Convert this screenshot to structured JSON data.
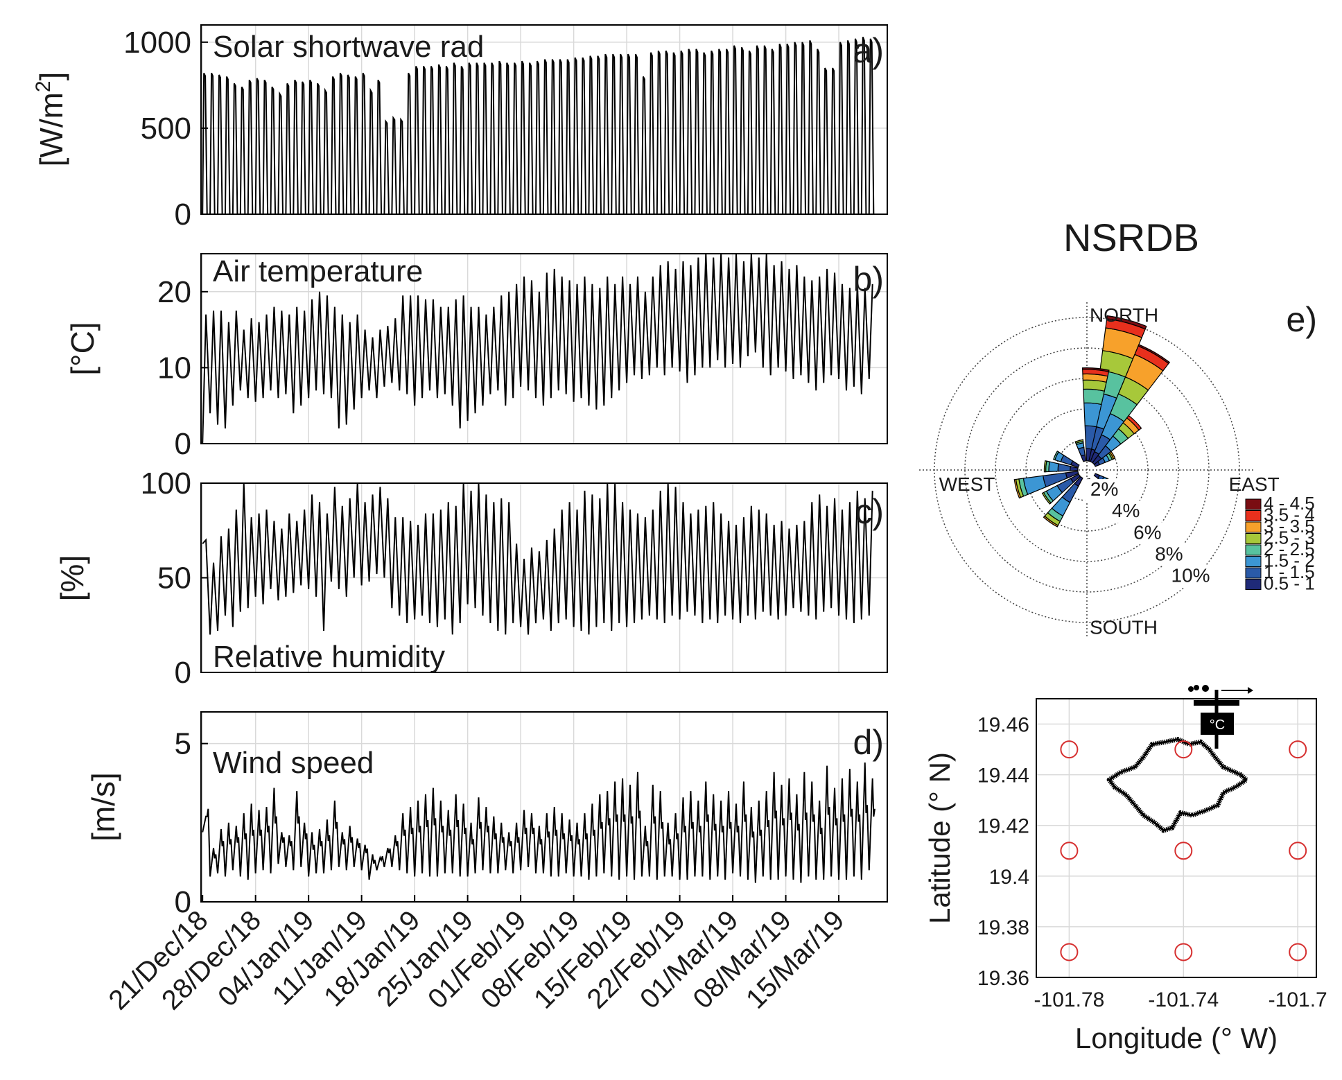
{
  "chart_data": [
    {
      "type": "line",
      "panel": "a)",
      "label": "Solar shortwave rad",
      "ylabel_main": "[W/m",
      "ylabel_sup": "2",
      "ylabel_end": "]",
      "ylim": [
        0,
        1100
      ],
      "yticks": [
        "0",
        "500",
        "1000"
      ],
      "ytick_values": [
        0,
        500,
        1000
      ],
      "series": [
        {
          "name": "shortwave",
          "daily_peak": [
            820,
            820,
            810,
            800,
            760,
            740,
            780,
            790,
            780,
            740,
            700,
            760,
            780,
            770,
            780,
            760,
            720,
            800,
            820,
            810,
            800,
            820,
            720,
            780,
            540,
            560,
            550,
            820,
            860,
            860,
            860,
            870,
            860,
            880,
            860,
            880,
            880,
            880,
            880,
            890,
            880,
            880,
            890,
            880,
            890,
            900,
            900,
            900,
            900,
            910,
            910,
            920,
            920,
            930,
            930,
            930,
            930,
            930,
            800,
            940,
            950,
            950,
            940,
            950,
            960,
            960,
            940,
            950,
            960,
            960,
            980,
            970,
            950,
            980,
            980,
            960,
            990,
            990,
            1000,
            1000,
            1010,
            960,
            850,
            850,
            1000,
            1010,
            1020,
            1030,
            1020
          ]
        }
      ]
    },
    {
      "type": "line",
      "panel": "b)",
      "label": "Air temperature",
      "ylabel": "[°C]",
      "ylim": [
        0,
        25
      ],
      "yticks": [
        "0",
        "10",
        "20"
      ],
      "ytick_values": [
        0,
        10,
        20
      ],
      "series": [
        {
          "name": "air_temp",
          "daily_max": [
            17.0,
            17.5,
            17.5,
            16.0,
            17.5,
            15.0,
            16.5,
            16.0,
            17.0,
            18.0,
            17.5,
            17.0,
            18.0,
            17.5,
            19.0,
            20.0,
            19.5,
            18.0,
            17.0,
            16.0,
            17.0,
            15.0,
            14.0,
            15.0,
            15.5,
            16.5,
            19.5,
            19.5,
            19.5,
            19.0,
            19.0,
            18.0,
            18.0,
            19.0,
            19.5,
            18.0,
            18.0,
            17.0,
            18.0,
            19.5,
            20.0,
            21.0,
            22.0,
            21.5,
            20.0,
            22.5,
            23.0,
            22.0,
            21.5,
            21.0,
            22.0,
            21.0,
            20.5,
            22.0,
            21.0,
            22.0,
            21.0,
            22.0,
            20.0,
            22.0,
            23.5,
            24.0,
            23.0,
            24.0,
            23.5,
            24.5,
            25.0,
            24.5,
            25.0,
            24.5,
            25.0,
            24.0,
            25.0,
            24.5,
            25.0,
            23.5,
            24.0,
            23.0,
            23.5,
            22.0,
            21.5,
            22.0,
            23.0,
            22.5,
            21.0,
            20.5,
            21.0,
            20.5,
            21.0
          ],
          "daily_min": [
            0.0,
            4.0,
            2.5,
            2.0,
            5.0,
            7.0,
            6.0,
            5.5,
            6.0,
            7.0,
            6.0,
            6.5,
            4.0,
            5.0,
            6.0,
            7.0,
            6.5,
            6.0,
            2.0,
            2.5,
            4.5,
            6.0,
            7.0,
            6.0,
            7.5,
            8.0,
            7.0,
            6.5,
            5.0,
            6.0,
            7.0,
            6.0,
            6.5,
            5.0,
            2.0,
            3.0,
            4.0,
            5.0,
            6.5,
            7.0,
            5.0,
            6.0,
            7.5,
            7.0,
            6.0,
            5.0,
            6.0,
            7.0,
            6.5,
            5.5,
            6.0,
            5.0,
            4.5,
            5.0,
            6.0,
            7.0,
            8.0,
            9.0,
            8.5,
            9.0,
            10.0,
            9.0,
            10.0,
            9.5,
            8.0,
            9.0,
            10.0,
            10.0,
            11.0,
            10.0,
            10.5,
            10.0,
            11.5,
            12.0,
            10.0,
            9.0,
            10.0,
            9.5,
            8.5,
            9.0,
            8.0,
            7.0,
            8.0,
            9.0,
            8.5,
            7.0,
            7.5,
            6.5,
            8.5
          ]
        }
      ]
    },
    {
      "type": "line",
      "panel": "c)",
      "label": "Relative humidity",
      "ylabel": "[%]",
      "ylim": [
        0,
        100
      ],
      "yticks": [
        "0",
        "50",
        "100"
      ],
      "ytick_values": [
        0,
        50,
        100
      ],
      "series": [
        {
          "name": "rel_humidity",
          "daily_max": [
            70,
            58,
            72,
            76,
            86,
            100,
            82,
            84,
            86,
            80,
            76,
            84,
            80,
            86,
            94,
            90,
            84,
            98,
            88,
            92,
            100,
            90,
            94,
            98,
            92,
            82,
            82,
            80,
            78,
            84,
            84,
            86,
            90,
            88,
            100,
            96,
            100,
            94,
            90,
            92,
            90,
            68,
            60,
            66,
            64,
            70,
            76,
            86,
            90,
            86,
            96,
            94,
            92,
            100,
            100,
            90,
            86,
            84,
            82,
            86,
            96,
            100,
            98,
            90,
            84,
            86,
            88,
            90,
            84,
            80,
            78,
            82,
            88,
            86,
            84,
            78,
            80,
            76,
            78,
            80,
            90,
            94,
            88,
            92,
            86,
            90,
            96,
            92,
            96
          ],
          "daily_min": [
            68,
            20,
            22,
            30,
            24,
            32,
            34,
            40,
            36,
            44,
            38,
            40,
            42,
            46,
            44,
            40,
            22,
            48,
            44,
            40,
            50,
            46,
            48,
            52,
            50,
            34,
            30,
            26,
            28,
            30,
            26,
            24,
            28,
            20,
            26,
            36,
            34,
            30,
            26,
            22,
            20,
            26,
            24,
            20,
            26,
            28,
            22,
            26,
            28,
            24,
            22,
            20,
            24,
            26,
            22,
            26,
            24,
            26,
            28,
            30,
            28,
            26,
            30,
            28,
            32,
            30,
            26,
            28,
            26,
            30,
            28,
            26,
            30,
            28,
            32,
            30,
            28,
            30,
            34,
            32,
            30,
            28,
            32,
            34,
            30,
            28,
            26,
            28,
            30
          ]
        }
      ]
    },
    {
      "type": "line",
      "panel": "d)",
      "label": "Wind speed",
      "ylabel": "[m/s]",
      "ylim": [
        0,
        6
      ],
      "yticks": [
        "0",
        "5"
      ],
      "ytick_values": [
        0,
        5
      ],
      "xticks": [
        "21/Dec/18",
        "28/Dec/18",
        "04/Jan/19",
        "11/Jan/19",
        "18/Jan/19",
        "25/Jan/19",
        "01/Feb/19",
        "08/Feb/19",
        "15/Feb/19",
        "22/Feb/19",
        "01/Mar/19",
        "08/Mar/19",
        "15/Mar/19"
      ],
      "x_day_offsets": [
        0,
        7,
        14,
        21,
        28,
        35,
        42,
        49,
        56,
        63,
        70,
        77,
        84
      ],
      "x_range_days": [
        -0.2,
        90.4
      ],
      "series": [
        {
          "name": "wind_speed",
          "daily_max": [
            2.7,
            1.7,
            2.3,
            2.5,
            2.4,
            2.8,
            3.1,
            2.9,
            3.0,
            3.6,
            2.2,
            2.1,
            3.5,
            2.5,
            2.2,
            2.3,
            2.6,
            3.2,
            2.2,
            2.4,
            2.0,
            1.8,
            1.5,
            1.4,
            1.7,
            2.1,
            2.8,
            3.0,
            3.2,
            3.4,
            3.6,
            3.2,
            2.9,
            3.4,
            3.1,
            2.5,
            3.3,
            3.0,
            2.7,
            2.5,
            2.2,
            2.5,
            2.9,
            2.8,
            2.4,
            2.8,
            3.0,
            2.8,
            2.6,
            2.5,
            2.8,
            3.1,
            3.4,
            3.5,
            3.8,
            3.9,
            3.7,
            4.1,
            2.4,
            3.7,
            3.5,
            2.5,
            2.8,
            3.3,
            3.5,
            3.2,
            3.8,
            3.4,
            3.2,
            3.5,
            3.1,
            3.8,
            3.0,
            3.2,
            3.5,
            4.1,
            3.7,
            3.9,
            3.4,
            4.1,
            3.8,
            3.2,
            4.3,
            3.6,
            3.9,
            4.2,
            3.8,
            4.4,
            3.9
          ],
          "daily_min": [
            2.2,
            0.8,
            0.9,
            0.8,
            1.0,
            0.8,
            0.7,
            0.9,
            1.0,
            0.9,
            1.2,
            1.1,
            1.0,
            1.1,
            0.8,
            0.9,
            0.9,
            1.0,
            1.1,
            1.0,
            1.1,
            1.0,
            0.7,
            1.0,
            1.1,
            1.1,
            1.0,
            0.9,
            0.8,
            0.9,
            0.8,
            0.8,
            0.9,
            0.9,
            0.8,
            0.8,
            0.9,
            1.0,
            0.9,
            0.9,
            1.0,
            0.9,
            1.0,
            1.1,
            0.9,
            0.9,
            0.8,
            0.8,
            0.9,
            0.8,
            0.8,
            0.7,
            0.8,
            0.9,
            0.8,
            0.7,
            0.8,
            0.7,
            0.8,
            0.8,
            0.7,
            0.8,
            0.8,
            0.7,
            0.7,
            0.8,
            0.8,
            0.7,
            0.8,
            0.7,
            0.9,
            0.8,
            0.7,
            0.6,
            0.8,
            0.7,
            0.7,
            0.8,
            0.7,
            0.6,
            0.8,
            0.7,
            0.7,
            0.8,
            0.7,
            0.7,
            0.8,
            0.7,
            1.0
          ]
        }
      ]
    },
    {
      "type": "wind-rose",
      "panel": "e)",
      "title": "NSRDB",
      "directions": [
        "NORTH",
        "EAST",
        "SOUTH",
        "WEST"
      ],
      "rings": [
        2,
        4,
        6,
        8,
        10
      ],
      "ring_labels": [
        "2%",
        "4%",
        "6%",
        "8%",
        "10%"
      ],
      "bins": [
        "4 - 4.5",
        "3.5 - 4",
        "3 - 3.5",
        "2.5 - 3",
        "2 - 2.5",
        "1.5 - 2",
        "1 - 1.5",
        "0.5 - 1"
      ],
      "bin_colors": [
        "#7a0d12",
        "#e8301d",
        "#f7a12b",
        "#a7c83a",
        "#58c29f",
        "#3c96d4",
        "#2a5aa8",
        "#1f2a78"
      ],
      "sectors": [
        {
          "dir_deg": 15,
          "freq": [
            0.2,
            0.6,
            1.5,
            1.3,
            1.5,
            2.2,
            1.5,
            0.8
          ]
        },
        {
          "dir_deg": 30,
          "freq": [
            0.1,
            0.6,
            1.6,
            1.2,
            1.4,
            1.5,
            1.2,
            0.7
          ]
        },
        {
          "dir_deg": 5,
          "freq": [
            0.1,
            0.3,
            0.4,
            0.6,
            0.9,
            1.5,
            1.5,
            0.8
          ]
        },
        {
          "dir_deg": 45,
          "freq": [
            0.0,
            0.2,
            0.4,
            0.5,
            0.6,
            0.8,
            0.8,
            0.6
          ]
        },
        {
          "dir_deg": 255,
          "freq": [
            0.0,
            0.0,
            0.1,
            0.2,
            0.3,
            1.3,
            1.5,
            0.8
          ]
        },
        {
          "dir_deg": 215,
          "freq": [
            0.0,
            0.0,
            0.1,
            0.3,
            0.4,
            1.0,
            1.2,
            0.6
          ]
        },
        {
          "dir_deg": 235,
          "freq": [
            0.0,
            0.0,
            0.0,
            0.1,
            0.2,
            0.8,
            1.0,
            0.6
          ]
        },
        {
          "dir_deg": 275,
          "freq": [
            0.0,
            0.0,
            0.0,
            0.1,
            0.2,
            0.6,
            0.8,
            0.5
          ]
        },
        {
          "dir_deg": 295,
          "freq": [
            0.0,
            0.0,
            0.0,
            0.0,
            0.1,
            0.4,
            0.7,
            0.5
          ]
        },
        {
          "dir_deg": 345,
          "freq": [
            0.0,
            0.0,
            0.0,
            0.1,
            0.1,
            0.3,
            0.5,
            0.4
          ]
        },
        {
          "dir_deg": 60,
          "freq": [
            0.0,
            0.0,
            0.1,
            0.1,
            0.2,
            0.3,
            0.4,
            0.3
          ]
        },
        {
          "dir_deg": 120,
          "freq": [
            0.0,
            0.0,
            0.0,
            0.0,
            0.1,
            0.2,
            0.3,
            0.3
          ]
        },
        {
          "dir_deg": 170,
          "freq": [
            0.0,
            0.0,
            0.0,
            0.0,
            0.1,
            0.3,
            0.4,
            0.3
          ]
        }
      ]
    },
    {
      "type": "scatter",
      "panel": "map",
      "xlabel": "Longitude (° W)",
      "ylabel": "Latitude (° N)",
      "xlim": [
        -101.7915,
        -101.6935
      ],
      "ylim": [
        19.36,
        19.47
      ],
      "xticks": [
        "-101.78",
        "-101.74",
        "-101.7"
      ],
      "xtick_values": [
        -101.78,
        -101.74,
        -101.7
      ],
      "yticks": [
        "19.36",
        "19.38",
        "19.4",
        "19.42",
        "19.44",
        "19.46"
      ],
      "ytick_values": [
        19.36,
        19.38,
        19.4,
        19.42,
        19.44,
        19.46
      ],
      "grid_points": [
        {
          "lon": -101.78,
          "lat": 19.45
        },
        {
          "lon": -101.74,
          "lat": 19.45
        },
        {
          "lon": -101.7,
          "lat": 19.45
        },
        {
          "lon": -101.78,
          "lat": 19.41
        },
        {
          "lon": -101.74,
          "lat": 19.41
        },
        {
          "lon": -101.7,
          "lat": 19.41
        },
        {
          "lon": -101.78,
          "lat": 19.37
        },
        {
          "lon": -101.74,
          "lat": 19.37
        },
        {
          "lon": -101.7,
          "lat": 19.37
        }
      ],
      "grid_point_color": "#d62f2f",
      "lake_outline": [
        [
          -101.757,
          19.443
        ],
        [
          -101.754,
          19.447
        ],
        [
          -101.751,
          19.452
        ],
        [
          -101.746,
          19.453
        ],
        [
          -101.742,
          19.454
        ],
        [
          -101.738,
          19.452
        ],
        [
          -101.734,
          19.453
        ],
        [
          -101.731,
          19.45
        ],
        [
          -101.729,
          19.447
        ],
        [
          -101.726,
          19.443
        ],
        [
          -101.72,
          19.44
        ],
        [
          -101.718,
          19.438
        ],
        [
          -101.722,
          19.435
        ],
        [
          -101.726,
          19.433
        ],
        [
          -101.728,
          19.428
        ],
        [
          -101.732,
          19.426
        ],
        [
          -101.737,
          19.424
        ],
        [
          -101.741,
          19.425
        ],
        [
          -101.744,
          19.419
        ],
        [
          -101.747,
          19.418
        ],
        [
          -101.75,
          19.421
        ],
        [
          -101.754,
          19.424
        ],
        [
          -101.757,
          19.428
        ],
        [
          -101.76,
          19.432
        ],
        [
          -101.764,
          19.435
        ],
        [
          -101.766,
          19.438
        ],
        [
          -101.762,
          19.441
        ]
      ],
      "station_label": "°C"
    }
  ]
}
